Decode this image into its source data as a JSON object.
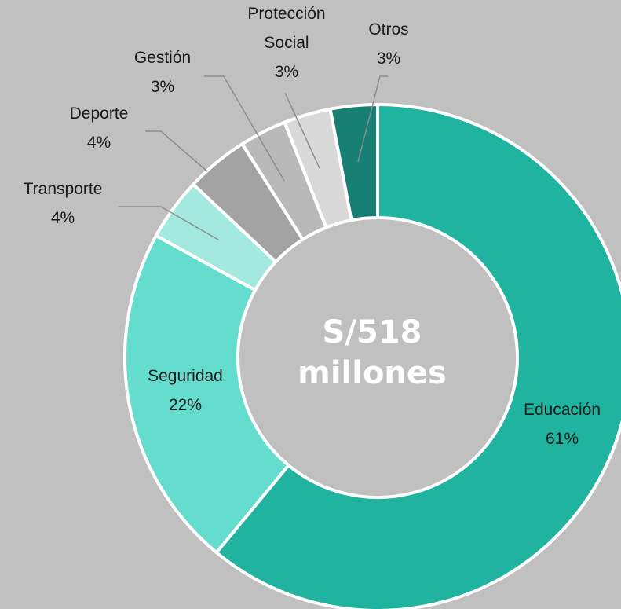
{
  "chart_data": {
    "type": "pie",
    "style": "donut",
    "center_label": [
      "S/518",
      "millones"
    ],
    "slices": [
      {
        "label": [
          "Educación"
        ],
        "value_label": "61%",
        "value": 61,
        "color": "#1fb3a0"
      },
      {
        "label": [
          "Seguridad"
        ],
        "value_label": "22%",
        "value": 22,
        "color": "#64ddcf"
      },
      {
        "label": [
          "Transporte"
        ],
        "value_label": "4%",
        "value": 4,
        "color": "#a3e9e0"
      },
      {
        "label": [
          "Deporte"
        ],
        "value_label": "4%",
        "value": 4,
        "color": "#a3a3a3"
      },
      {
        "label": [
          "Gestión"
        ],
        "value_label": "3%",
        "value": 3,
        "color": "#b9b9b9"
      },
      {
        "label": [
          "Protección",
          "Social"
        ],
        "value_label": "3%",
        "value": 3,
        "color": "#d9d9d9"
      },
      {
        "label": [
          "Otros"
        ],
        "value_label": "3%",
        "value": 3,
        "color": "#177f73"
      }
    ],
    "legend": "none"
  }
}
